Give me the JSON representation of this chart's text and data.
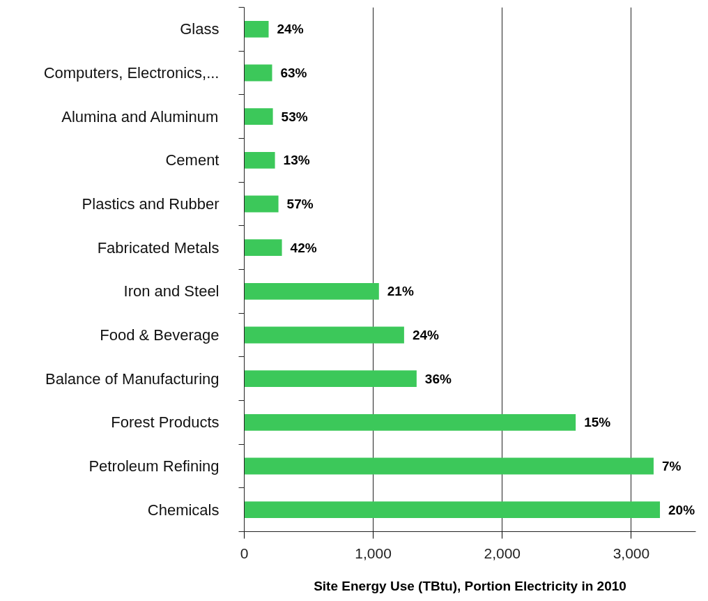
{
  "chart_data": {
    "type": "bar",
    "orientation": "horizontal",
    "xlabel": "Site Energy Use (TBtu), Portion Electricity in 2010",
    "categories": [
      "Glass",
      "Computers, Electronics,...",
      "Alumina and Aluminum",
      "Cement",
      "Plastics and Rubber",
      "Fabricated Metals",
      "Iron and Steel",
      "Food & Beverage",
      "Balance of Manufacturing",
      "Forest Products",
      "Petroleum Refining",
      "Chemicals"
    ],
    "values": [
      189,
      216,
      222,
      238,
      265,
      292,
      1044,
      1239,
      1336,
      2569,
      3173,
      3222
    ],
    "annotations": [
      {
        "text": "24%",
        "x": 189,
        "y": "Glass"
      },
      {
        "text": "63%",
        "x": 216,
        "y": "Computers, Electronics,..."
      },
      {
        "text": "53%",
        "x": 222,
        "y": "Alumina and Aluminum"
      },
      {
        "text": "13%",
        "x": 238,
        "y": "Cement"
      },
      {
        "text": "57%",
        "x": 265,
        "y": "Plastics and Rubber"
      },
      {
        "text": "42%",
        "x": 292,
        "y": "Fabricated Metals"
      },
      {
        "text": "21%",
        "x": 1044,
        "y": "Iron and Steel"
      },
      {
        "text": "24%",
        "x": 1239,
        "y": "Food & Beverage"
      },
      {
        "text": "36%",
        "x": 1336,
        "y": "Balance of Manufacturing"
      },
      {
        "text": "15%",
        "x": 2569,
        "y": "Forest Products"
      },
      {
        "text": "7%",
        "x": 3173,
        "y": "Petroleum Refining"
      },
      {
        "text": "20%",
        "x": 3222,
        "y": "Chemicals"
      }
    ],
    "color": "#3cc85a",
    "xlim": [
      0,
      3500
    ],
    "xticks": [
      0,
      {
        "value": 1000,
        "label": "1,000"
      },
      {
        "value": 2000,
        "label": "2,000"
      },
      {
        "value": 3000,
        "label": "3,000"
      }
    ],
    "grid": "x"
  }
}
